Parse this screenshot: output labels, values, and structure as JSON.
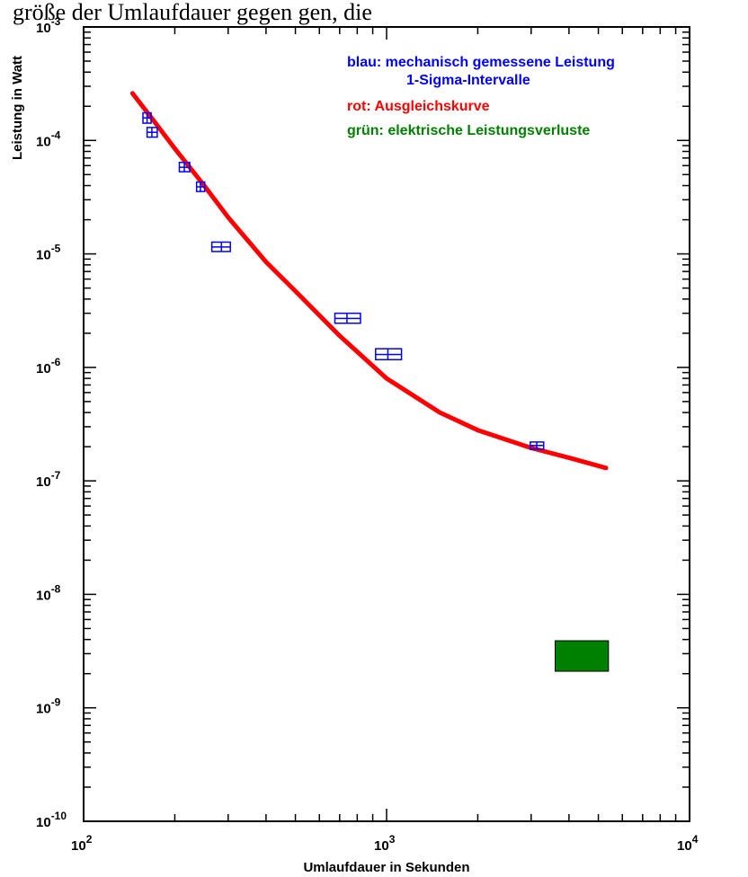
{
  "header_fragment": "größe der Umlaufdauer gegen gen, die ",
  "chart_data": {
    "type": "scatter",
    "xlabel": "Umlaufdauer in Sekunden",
    "ylabel": "Leistung in Watt",
    "x_scale": "log",
    "y_scale": "log",
    "xlim": [
      100,
      10000
    ],
    "ylim": [
      1e-10,
      0.001
    ],
    "x_tick_labels": [
      {
        "base": "10",
        "exp": "2",
        "value": 100
      },
      {
        "base": "10",
        "exp": "3",
        "value": 1000
      },
      {
        "base": "10",
        "exp": "4",
        "value": 10000
      }
    ],
    "y_tick_labels": [
      {
        "base": "10",
        "exp": "-3",
        "value": 0.001
      },
      {
        "base": "10",
        "exp": "-4",
        "value": 0.0001
      },
      {
        "base": "10",
        "exp": "-5",
        "value": 1e-05
      },
      {
        "base": "10",
        "exp": "-6",
        "value": 1e-06
      },
      {
        "base": "10",
        "exp": "-7",
        "value": 1e-07
      },
      {
        "base": "10",
        "exp": "-8",
        "value": 1e-08
      },
      {
        "base": "10",
        "exp": "-9",
        "value": 1e-09
      },
      {
        "base": "10",
        "exp": "-10",
        "value": 1e-10
      }
    ],
    "legend": [
      {
        "text": "blau: mechanisch gemessene Leistung",
        "color": "#0000ff"
      },
      {
        "text": "1-Sigma-Intervalle",
        "color": "#0000ff"
      },
      {
        "text": "rot: Ausgleichskurve",
        "color": "#ff0000"
      },
      {
        "text": "grün: elektrische Leistungsverluste",
        "color": "#008000"
      }
    ],
    "series": [
      {
        "type": "error-boxes",
        "color": "#0000ff",
        "points": [
          {
            "x": 162,
            "y": 0.000158,
            "x_err": [
              157,
              167
            ],
            "y_err": [
              0.000142,
              0.000175
            ]
          },
          {
            "x": 168,
            "y": 0.000118,
            "x_err": [
              162,
              175
            ],
            "y_err": [
              0.000107,
              0.00013
            ]
          },
          {
            "x": 215,
            "y": 5.8e-05,
            "x_err": [
              207,
              224
            ],
            "y_err": [
              5.3e-05,
              6.4e-05
            ]
          },
          {
            "x": 243,
            "y": 3.9e-05,
            "x_err": [
              236,
              251
            ],
            "y_err": [
              3.55e-05,
              4.3e-05
            ]
          },
          {
            "x": 285,
            "y": 1.15e-05,
            "x_err": [
              265,
              305
            ],
            "y_err": [
              1.05e-05,
              1.27e-05
            ]
          },
          {
            "x": 740,
            "y": 2.7e-06,
            "x_err": [
              675,
              820
            ],
            "y_err": [
              2.45e-06,
              3e-06
            ]
          },
          {
            "x": 1010,
            "y": 1.3e-06,
            "x_err": [
              920,
              1120
            ],
            "y_err": [
              1.17e-06,
              1.46e-06
            ]
          },
          {
            "x": 3130,
            "y": 2.05e-07,
            "x_err": [
              2980,
              3300
            ],
            "y_err": [
              1.9e-07,
              2.2e-07
            ]
          }
        ]
      },
      {
        "type": "line",
        "color": "#ff0000",
        "x": [
          145,
          170,
          200,
          250,
          300,
          400,
          500,
          700,
          1000,
          1500,
          2000,
          3000,
          4000,
          5300
        ],
        "y": [
          0.00026,
          0.00015,
          8.5e-05,
          4e-05,
          2.1e-05,
          8.5e-06,
          4.7e-06,
          1.9e-06,
          8e-07,
          4e-07,
          2.8e-07,
          1.95e-07,
          1.6e-07,
          1.3e-07
        ]
      },
      {
        "type": "rect",
        "color": "#008000",
        "x_range": [
          3600,
          5400
        ],
        "y_range": [
          2.1e-09,
          3.9e-09
        ]
      }
    ]
  }
}
